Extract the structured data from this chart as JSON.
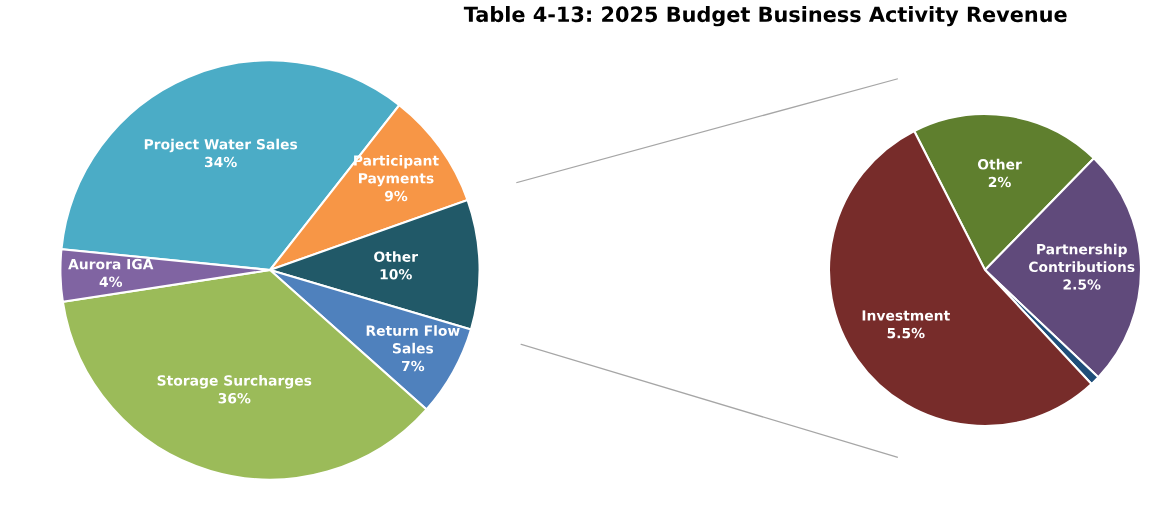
{
  "chart_data": [
    {
      "type": "pie",
      "title": "Table 4-13: 2025 Budget Business Activity Revenue",
      "categories": [
        "Project Water Sales",
        "Participant\nPayments",
        "Other",
        "Return Flow\nSales",
        "Storage Surcharges",
        "Aurora IGA"
      ],
      "values": [
        34,
        9,
        10,
        7,
        36,
        4
      ],
      "value_labels": [
        "34%",
        "9%",
        "10%",
        "7%",
        "36%",
        "4%"
      ],
      "colors": [
        "#4bacc6",
        "#f79646",
        "#215968",
        "#4f81bd",
        "#9bbb59",
        "#8064a2"
      ]
    },
    {
      "type": "pie",
      "categories": [
        "Other",
        "Partnership\nContributions",
        null,
        "Investment"
      ],
      "values": [
        2,
        2.5,
        0.1,
        5.5
      ],
      "value_labels": [
        "2%",
        "2.5%",
        null,
        "5.5%"
      ],
      "colors": [
        "#5f7f2e",
        "#604a7b",
        "#1f4e79",
        "#772c2a"
      ]
    }
  ]
}
